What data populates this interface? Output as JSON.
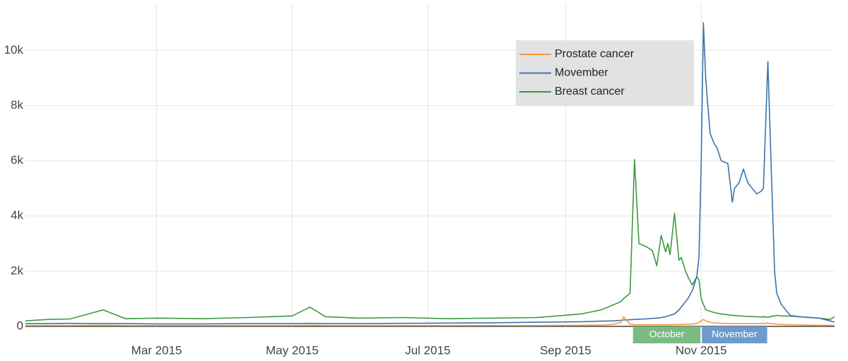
{
  "chart_data": {
    "type": "line",
    "x": [
      0,
      10,
      20,
      35,
      45,
      60,
      80,
      100,
      120,
      128,
      135,
      150,
      170,
      190,
      210,
      230,
      250,
      259,
      265,
      268,
      269,
      272,
      274,
      276,
      279,
      282,
      284,
      286,
      288,
      289,
      290,
      292,
      294,
      295,
      297,
      298,
      300,
      302,
      303,
      304,
      305,
      306,
      308,
      310,
      311,
      313,
      316,
      318,
      319,
      321,
      323,
      325,
      329,
      331,
      332,
      334,
      335,
      337,
      338,
      340,
      344,
      348,
      357,
      362,
      364
    ],
    "series": [
      {
        "name": "Prostate cancer",
        "color": "#f59a3c",
        "values": [
          30,
          30,
          30,
          40,
          30,
          30,
          30,
          30,
          30,
          40,
          30,
          30,
          30,
          30,
          30,
          30,
          40,
          50,
          80,
          150,
          350,
          80,
          60,
          60,
          60,
          60,
          60,
          60,
          60,
          60,
          60,
          70,
          70,
          70,
          80,
          80,
          90,
          100,
          150,
          200,
          250,
          200,
          150,
          120,
          120,
          110,
          100,
          100,
          100,
          100,
          100,
          100,
          100,
          100,
          100,
          120,
          100,
          90,
          80,
          70,
          60,
          50,
          40,
          40,
          30
        ]
      },
      {
        "name": "Movember",
        "color": "#3a74ad",
        "values": [
          100,
          100,
          110,
          100,
          100,
          90,
          90,
          100,
          100,
          110,
          100,
          100,
          110,
          120,
          130,
          150,
          170,
          190,
          200,
          220,
          230,
          240,
          250,
          260,
          270,
          290,
          300,
          320,
          350,
          380,
          400,
          450,
          600,
          700,
          900,
          1000,
          1300,
          1800,
          2500,
          6000,
          11000,
          9000,
          7000,
          6600,
          6500,
          6000,
          5900,
          4500,
          5000,
          5200,
          5700,
          5200,
          4800,
          4900,
          5000,
          9600,
          7000,
          2000,
          1200,
          800,
          400,
          350,
          300,
          200,
          150
        ]
      },
      {
        "name": "Breast cancer",
        "color": "#3c9a3f",
        "values": [
          200,
          250,
          270,
          600,
          280,
          300,
          280,
          320,
          380,
          700,
          350,
          300,
          320,
          280,
          300,
          320,
          450,
          600,
          800,
          900,
          1000,
          1200,
          6050,
          3000,
          2900,
          2750,
          2200,
          3300,
          2700,
          3000,
          2600,
          4100,
          2400,
          2500,
          2000,
          1800,
          1500,
          1800,
          1700,
          1000,
          800,
          600,
          550,
          500,
          480,
          450,
          420,
          400,
          400,
          380,
          370,
          360,
          350,
          340,
          350,
          330,
          350,
          380,
          400,
          380,
          370,
          350,
          300,
          250,
          350
        ]
      }
    ],
    "xlim": [
      0,
      364
    ],
    "xticks": [
      {
        "value": 59,
        "label": "Mar 2015"
      },
      {
        "value": 120,
        "label": "May 2015"
      },
      {
        "value": 181,
        "label": "Jul 2015"
      },
      {
        "value": 243,
        "label": "Sep 2015"
      },
      {
        "value": 304,
        "label": "Nov 2015"
      }
    ],
    "ylim": [
      0,
      11700
    ],
    "yticks": [
      0,
      {
        "value": 2000,
        "label": "2k"
      },
      {
        "value": 4000,
        "label": "4k"
      },
      {
        "value": 6000,
        "label": "6k"
      },
      {
        "value": 8000,
        "label": "8k"
      },
      {
        "value": 10000,
        "label": "10k"
      }
    ],
    "grid": true,
    "legend": "top-right",
    "annotations": [
      {
        "text": "October",
        "start": 273,
        "end": 304,
        "color": "#79bb81"
      },
      {
        "text": "November",
        "start": 304,
        "end": 334,
        "color": "#6e9bcd"
      }
    ]
  }
}
